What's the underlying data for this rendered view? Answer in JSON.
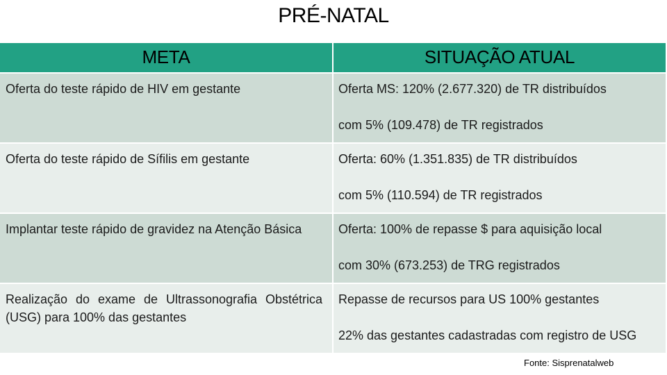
{
  "title": "PRÉ-NATAL",
  "table": {
    "headers": [
      "META",
      "SITUAÇÃO ATUAL"
    ],
    "rows": [
      {
        "meta": "Oferta do teste rápido de HIV em gestante",
        "situacao": [
          "Oferta MS: 120% (2.677.320) de TR distribuídos",
          "com 5% (109.478) de TR registrados"
        ]
      },
      {
        "meta": "Oferta do teste rápido de Sífilis em gestante",
        "situacao": [
          "Oferta: 60% (1.351.835) de TR distribuídos",
          "com 5% (110.594) de TR registrados"
        ]
      },
      {
        "meta": "Implantar teste rápido de gravidez na Atenção Básica",
        "situacao": [
          "Oferta: 100% de repasse $ para aquisição local",
          "com 30% (673.253) de TRG registrados"
        ]
      },
      {
        "meta": "Realização do exame de Ultrassonografia Obstétrica (USG) para 100% das gestantes",
        "situacao": [
          "Repasse de recursos para US 100% gestantes",
          "22% das gestantes cadastradas com registro de USG"
        ]
      }
    ]
  },
  "source": "Fonte: Sisprenatalweb",
  "colors": {
    "header": "#22a184",
    "row_odd": "#cddbd4",
    "row_even": "#e8eeeb"
  }
}
